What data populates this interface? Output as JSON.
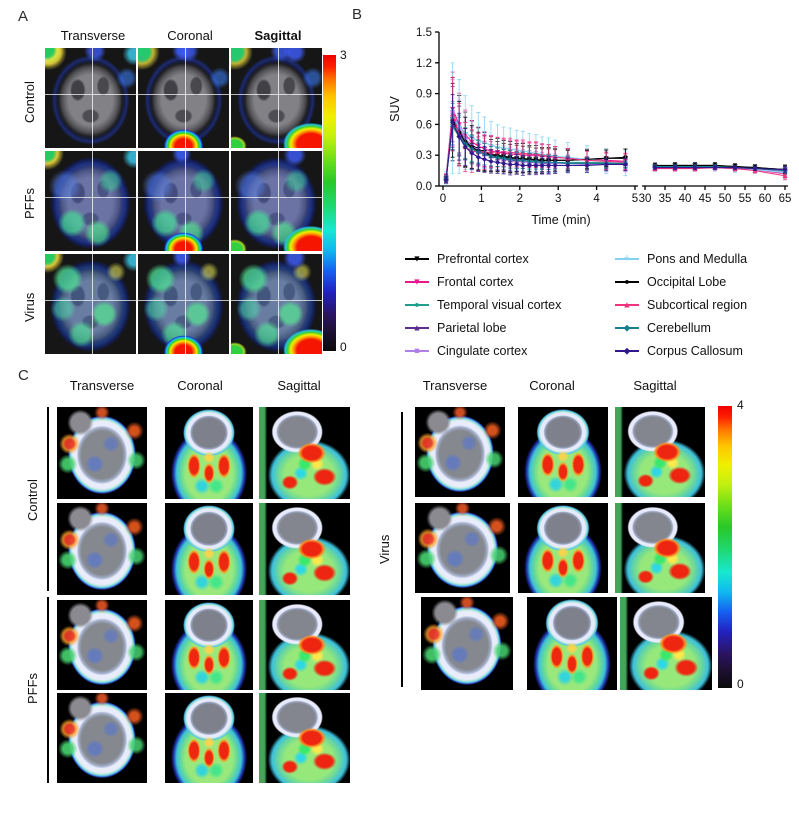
{
  "panel_a": {
    "label": "A",
    "column_headers": [
      "Transverse",
      "Coronal",
      "Sagittal"
    ],
    "row_labels": [
      "Control",
      "PFFs",
      "Virus"
    ],
    "colorbar": {
      "max_label": "3",
      "min_label": "0"
    }
  },
  "panel_b": {
    "label": "B"
  },
  "panel_c": {
    "label": "C",
    "left_column_headers": [
      "Transverse",
      "Coronal",
      "Sagittal"
    ],
    "left_row_labels": [
      "Control",
      "PFFs"
    ],
    "right_column_headers": [
      "Transverse",
      "Coronal",
      "Sagittal"
    ],
    "right_row_label": "Virus",
    "colorbar": {
      "max_label": "4",
      "min_label": "0"
    }
  },
  "chart_data": {
    "type": "line",
    "title": "",
    "xlabel": "Time (min)",
    "ylabel": "SUV",
    "ylim": [
      0,
      1.5
    ],
    "yticks": [
      0,
      0.3,
      0.6,
      0.9,
      1.2,
      1.5
    ],
    "x_axis_break": {
      "segment1_range": [
        0,
        5
      ],
      "segment2_range": [
        30,
        65
      ]
    },
    "xticks_segment1": [
      0,
      1,
      2,
      3,
      4,
      5
    ],
    "xticks_segment2": [
      30,
      35,
      40,
      45,
      50,
      55,
      60,
      65
    ],
    "error_bars": true,
    "times": [
      0.08,
      0.25,
      0.42,
      0.58,
      0.75,
      0.92,
      1.08,
      1.25,
      1.42,
      1.58,
      1.75,
      1.92,
      2.08,
      2.25,
      2.42,
      2.58,
      2.75,
      2.92,
      3.25,
      3.75,
      4.25,
      4.75,
      32.5,
      37.5,
      42.5,
      47.5,
      52.5,
      57.5,
      65
    ],
    "err_base": [
      0.05,
      0.45,
      0.38,
      0.3,
      0.26,
      0.23,
      0.21,
      0.19,
      0.18,
      0.17,
      0.17,
      0.16,
      0.16,
      0.15,
      0.15,
      0.14,
      0.14,
      0.13,
      0.12,
      0.11,
      0.1,
      0.1,
      0.03,
      0.03,
      0.03,
      0.03,
      0.03,
      0.03,
      0.05
    ],
    "series": [
      {
        "name": "Prefrontal cortex",
        "color": "#000000",
        "marker": "tri-down",
        "err_scale": 0.9,
        "values": [
          0.07,
          0.65,
          0.54,
          0.45,
          0.4,
          0.36,
          0.33,
          0.31,
          0.3,
          0.29,
          0.28,
          0.27,
          0.27,
          0.26,
          0.26,
          0.25,
          0.25,
          0.25,
          0.25,
          0.26,
          0.27,
          0.27,
          0.19,
          0.2,
          0.2,
          0.2,
          0.19,
          0.18,
          0.16
        ]
      },
      {
        "name": "Frontal cortex",
        "color": "#E8198B",
        "marker": "tri-down",
        "err_scale": 0.8,
        "values": [
          0.08,
          0.75,
          0.6,
          0.5,
          0.43,
          0.39,
          0.36,
          0.34,
          0.33,
          0.32,
          0.31,
          0.31,
          0.3,
          0.3,
          0.3,
          0.29,
          0.29,
          0.28,
          0.27,
          0.26,
          0.25,
          0.24,
          0.18,
          0.18,
          0.18,
          0.18,
          0.17,
          0.16,
          0.12
        ]
      },
      {
        "name": "Temporal visual cortex",
        "color": "#1F9E8E",
        "marker": "circle",
        "err_scale": 0.5,
        "values": [
          0.07,
          0.6,
          0.5,
          0.42,
          0.37,
          0.34,
          0.31,
          0.29,
          0.28,
          0.27,
          0.26,
          0.25,
          0.25,
          0.24,
          0.24,
          0.24,
          0.23,
          0.23,
          0.23,
          0.23,
          0.23,
          0.23,
          0.19,
          0.19,
          0.19,
          0.19,
          0.18,
          0.17,
          0.15
        ]
      },
      {
        "name": "Parietal lobe",
        "color": "#5B2D8E",
        "marker": "tri-up",
        "err_scale": 0.6,
        "values": [
          0.07,
          0.7,
          0.55,
          0.44,
          0.38,
          0.34,
          0.31,
          0.29,
          0.27,
          0.26,
          0.25,
          0.24,
          0.24,
          0.23,
          0.23,
          0.22,
          0.22,
          0.22,
          0.22,
          0.22,
          0.22,
          0.21,
          0.18,
          0.18,
          0.18,
          0.18,
          0.18,
          0.17,
          0.15
        ]
      },
      {
        "name": "Cingulate cortex",
        "color": "#B07FE8",
        "marker": "square",
        "err_scale": 0.7,
        "values": [
          0.08,
          0.72,
          0.57,
          0.46,
          0.39,
          0.35,
          0.32,
          0.3,
          0.28,
          0.27,
          0.26,
          0.25,
          0.24,
          0.24,
          0.23,
          0.23,
          0.22,
          0.22,
          0.22,
          0.21,
          0.21,
          0.21,
          0.18,
          0.18,
          0.18,
          0.18,
          0.17,
          0.17,
          0.14
        ]
      },
      {
        "name": "Pons and Medulla",
        "color": "#85D2F0",
        "marker": "plus",
        "err_scale": 1.2,
        "values": [
          0.08,
          0.66,
          0.58,
          0.52,
          0.47,
          0.44,
          0.42,
          0.4,
          0.38,
          0.37,
          0.36,
          0.35,
          0.34,
          0.33,
          0.32,
          0.31,
          0.3,
          0.29,
          0.28,
          0.26,
          0.24,
          0.22,
          0.18,
          0.18,
          0.18,
          0.18,
          0.17,
          0.16,
          0.13
        ]
      },
      {
        "name": "Occipital Lobe",
        "color": "#000000",
        "marker": "circle",
        "err_scale": 0.8,
        "values": [
          0.07,
          0.64,
          0.52,
          0.43,
          0.38,
          0.34,
          0.32,
          0.3,
          0.29,
          0.28,
          0.27,
          0.27,
          0.26,
          0.26,
          0.25,
          0.25,
          0.25,
          0.25,
          0.25,
          0.26,
          0.27,
          0.28,
          0.2,
          0.2,
          0.2,
          0.2,
          0.19,
          0.18,
          0.16
        ]
      },
      {
        "name": "Subcortical region",
        "color": "#F0327F",
        "marker": "tri-up",
        "err_scale": 0.8,
        "values": [
          0.07,
          0.7,
          0.5,
          0.38,
          0.34,
          0.33,
          0.33,
          0.33,
          0.33,
          0.33,
          0.33,
          0.32,
          0.32,
          0.31,
          0.31,
          0.3,
          0.29,
          0.28,
          0.27,
          0.25,
          0.24,
          0.23,
          0.17,
          0.17,
          0.17,
          0.18,
          0.17,
          0.15,
          0.1
        ]
      },
      {
        "name": "Cerebellum",
        "color": "#16808C",
        "marker": "diamond",
        "err_scale": 0.5,
        "values": [
          0.07,
          0.58,
          0.48,
          0.41,
          0.36,
          0.33,
          0.31,
          0.29,
          0.28,
          0.27,
          0.26,
          0.25,
          0.25,
          0.24,
          0.24,
          0.23,
          0.23,
          0.23,
          0.22,
          0.22,
          0.22,
          0.22,
          0.19,
          0.19,
          0.19,
          0.19,
          0.18,
          0.17,
          0.15
        ]
      },
      {
        "name": "Corpus Callosum",
        "color": "#31188C",
        "marker": "diamond",
        "err_scale": 0.6,
        "values": [
          0.06,
          0.62,
          0.48,
          0.38,
          0.32,
          0.28,
          0.26,
          0.24,
          0.23,
          0.22,
          0.21,
          0.21,
          0.2,
          0.2,
          0.2,
          0.2,
          0.2,
          0.2,
          0.2,
          0.2,
          0.21,
          0.21,
          0.18,
          0.18,
          0.18,
          0.18,
          0.18,
          0.17,
          0.16
        ]
      }
    ]
  }
}
